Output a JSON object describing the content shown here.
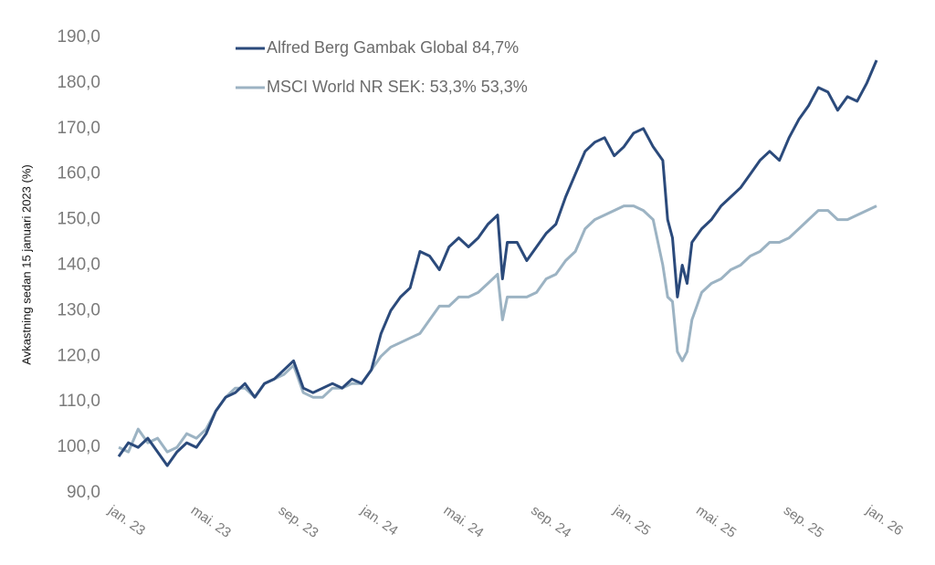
{
  "chart_data": {
    "type": "line",
    "ylabel": "Avkastning sedan 15 januari 2023 (%)",
    "x": [
      0,
      2,
      4,
      6,
      8,
      10,
      12,
      14,
      16,
      18,
      20,
      22,
      24,
      26,
      28,
      30,
      32,
      34,
      36,
      38,
      40,
      42,
      44,
      46,
      48,
      50,
      52,
      54,
      56,
      58,
      60,
      62,
      64,
      66,
      68,
      70,
      72,
      74,
      76,
      78,
      79,
      80,
      82,
      84,
      86,
      88,
      90,
      92,
      94,
      96,
      98,
      100,
      102,
      104,
      106,
      108,
      110,
      112,
      113,
      114,
      115,
      116,
      117,
      118,
      120,
      122,
      124,
      126,
      128,
      130,
      132,
      134,
      136,
      138,
      140,
      142,
      144,
      146,
      148,
      150,
      152,
      154,
      156
    ],
    "series": [
      {
        "name": "Alfred Berg Gambak Global 84,7%",
        "color": "#2b4a7b",
        "values": [
          98,
          101,
          100,
          102,
          99,
          96,
          99,
          101,
          100,
          103,
          108,
          111,
          112,
          114,
          111,
          114,
          115,
          117,
          119,
          113,
          112,
          113,
          114,
          113,
          115,
          114,
          117,
          125,
          130,
          133,
          135,
          143,
          142,
          139,
          144,
          146,
          144,
          146,
          149,
          151,
          137,
          145,
          145,
          141,
          144,
          147,
          149,
          155,
          160,
          165,
          167,
          168,
          164,
          166,
          169,
          170,
          166,
          163,
          150,
          146,
          133,
          140,
          136,
          145,
          148,
          150,
          153,
          155,
          157,
          160,
          163,
          165,
          163,
          168,
          172,
          175,
          179,
          178,
          174,
          177,
          176,
          180,
          185
        ]
      },
      {
        "name": "MSCI World NR SEK: 53,3% 53,3%",
        "color": "#9cb3c3",
        "values": [
          100,
          99,
          104,
          101,
          102,
          99,
          100,
          103,
          102,
          104,
          108,
          111,
          113,
          113,
          111,
          114,
          115,
          116,
          118,
          112,
          111,
          111,
          113,
          113,
          114,
          114,
          117,
          120,
          122,
          123,
          124,
          125,
          128,
          131,
          131,
          133,
          133,
          134,
          136,
          138,
          128,
          133,
          133,
          133,
          134,
          137,
          138,
          141,
          143,
          148,
          150,
          151,
          152,
          153,
          153,
          152,
          150,
          140,
          133,
          132,
          121,
          119,
          121,
          128,
          134,
          136,
          137,
          139,
          140,
          142,
          143,
          145,
          145,
          146,
          148,
          150,
          152,
          152,
          150,
          150,
          151,
          152,
          153
        ]
      }
    ],
    "xlim": [
      0,
      156
    ],
    "xticks": [
      {
        "value": 0,
        "label": "jan. 23"
      },
      {
        "value": 17,
        "label": "mai. 23"
      },
      {
        "value": 35,
        "label": "sep. 23"
      },
      {
        "value": 52,
        "label": "jan. 24"
      },
      {
        "value": 69,
        "label": "mai. 24"
      },
      {
        "value": 87,
        "label": "sep. 24"
      },
      {
        "value": 104,
        "label": "jan. 25"
      },
      {
        "value": 121,
        "label": "mai. 25"
      },
      {
        "value": 139,
        "label": "sep. 25"
      },
      {
        "value": 156,
        "label": "jan. 26"
      }
    ],
    "ylim": [
      90,
      190
    ],
    "yticks": [
      {
        "value": 90,
        "label": "90,0"
      },
      {
        "value": 100,
        "label": "100,0"
      },
      {
        "value": 110,
        "label": "110,0"
      },
      {
        "value": 120,
        "label": "120,0"
      },
      {
        "value": 130,
        "label": "130,0"
      },
      {
        "value": 140,
        "label": "140,0"
      },
      {
        "value": 150,
        "label": "150,0"
      },
      {
        "value": 160,
        "label": "160,0"
      },
      {
        "value": 170,
        "label": "170,0"
      },
      {
        "value": 180,
        "label": "180,0"
      },
      {
        "value": 190,
        "label": "190,0"
      }
    ],
    "legend": "top-left"
  }
}
